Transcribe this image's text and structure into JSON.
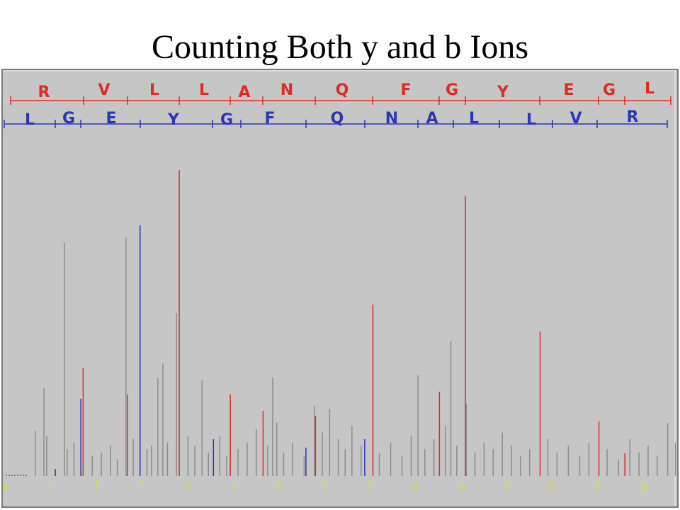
{
  "chart_data": {
    "type": "stem",
    "title": "Counting Both y and b Ions",
    "annotations": {
      "top_row": [
        "R",
        "V",
        "L",
        "L",
        "A",
        "N",
        "Q",
        "F",
        "G",
        "Y",
        "E",
        "G",
        "L"
      ],
      "top_color": "#e02a22",
      "bottom_row": [
        "L",
        "G",
        "E",
        "Y",
        "G",
        "F",
        "Q",
        "N",
        "A",
        "L",
        "L",
        "V",
        "R"
      ],
      "bottom_color": "#2a35b8"
    },
    "xlim": [
      0,
      14.8
    ],
    "xticks": [
      0,
      1,
      2,
      3,
      4,
      5,
      6,
      7,
      8,
      9,
      10,
      11,
      12,
      13,
      14
    ],
    "ylim": [
      0,
      100
    ],
    "series": [
      {
        "color": "#8c8c8c",
        "x": [
          0.65,
          0.84,
          0.9,
          1.29,
          1.35,
          1.5,
          1.9,
          2.1,
          2.3,
          2.45,
          2.64,
          2.8,
          3.1,
          3.2,
          3.34,
          3.45,
          3.55,
          3.75,
          4.0,
          4.15,
          4.31,
          4.45,
          4.7,
          4.85,
          5.1,
          5.3,
          5.5,
          5.75,
          5.86,
          5.95,
          6.1,
          6.3,
          6.55,
          6.78,
          6.95,
          7.11,
          7.3,
          7.45,
          7.6,
          7.8,
          8.2,
          8.45,
          8.7,
          8.9,
          9.05,
          9.2,
          9.4,
          9.65,
          9.77,
          9.9,
          10.11,
          10.3,
          10.5,
          10.7,
          10.9,
          11.1,
          11.3,
          11.5,
          11.9,
          12.1,
          12.35,
          12.6,
          12.8,
          13.2,
          13.45,
          13.7,
          13.9,
          14.1,
          14.3,
          14.53,
          14.7
        ],
        "values": [
          13.6,
          26.3,
          12,
          69.9,
          8,
          10,
          6,
          7,
          9,
          5,
          71.4,
          11,
          8,
          9,
          29.4,
          33.7,
          10,
          48.7,
          12,
          9,
          28.6,
          7,
          12,
          6,
          8,
          10,
          14,
          9,
          29.4,
          16,
          7,
          10,
          6,
          21,
          13,
          20.1,
          11,
          8,
          15,
          9,
          7,
          10,
          6,
          12,
          30.1,
          8,
          11,
          15,
          40.3,
          9,
          21.6,
          7,
          10,
          8,
          13,
          9,
          6,
          8,
          11,
          7,
          9,
          6,
          10,
          8,
          5,
          11,
          7,
          9,
          6,
          15.9,
          10
        ]
      },
      {
        "color": "#2a35b8",
        "x": [
          1.09,
          1.65,
          2.95,
          4.56,
          6.59,
          7.88
        ],
        "values": [
          2.1,
          23.1,
          75.0,
          11.0,
          8.5,
          11.0
        ]
      },
      {
        "color": "#e02a22",
        "x": [
          1.7,
          2.67,
          3.81,
          4.93,
          5.65,
          6.8,
          8.06,
          9.52,
          10.09,
          11.73,
          13.02,
          13.59
        ],
        "values": [
          32.2,
          24.4,
          91.5,
          24.4,
          19.5,
          18.0,
          51.3,
          25.2,
          83.7,
          43.2,
          16.3,
          6.8
        ]
      }
    ]
  }
}
